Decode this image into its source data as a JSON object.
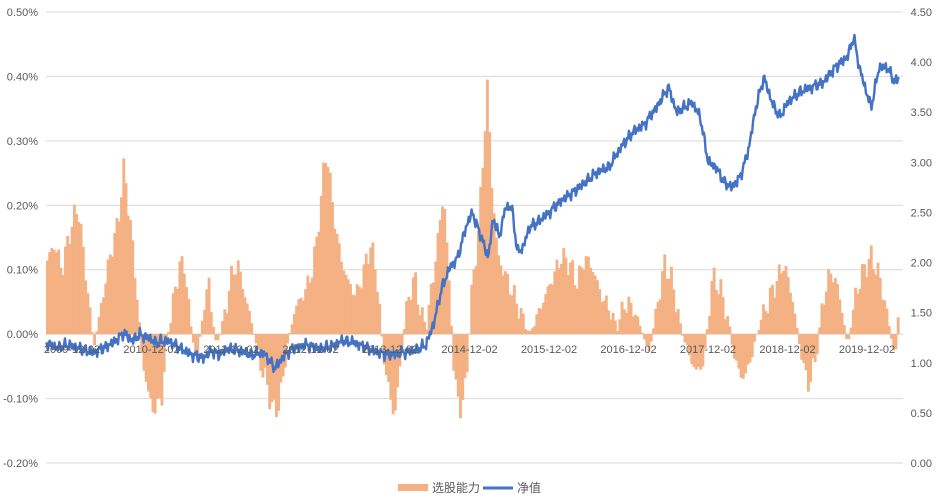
{
  "chart_data": {
    "type": "bar+line",
    "colors": {
      "bars": "#F4B183",
      "line": "#4472C4",
      "grid": "#d9d9d9",
      "text": "#595959"
    },
    "left_axis": {
      "ylim": [
        -0.002,
        0.005
      ],
      "ticks": [
        0.005,
        0.004,
        0.003,
        0.002,
        0.001,
        0.0,
        -0.001,
        -0.002
      ],
      "tick_labels": [
        "0.50%",
        "0.40%",
        "0.30%",
        "0.20%",
        "0.10%",
        "0.00%",
        "-0.10%",
        "-0.20%"
      ]
    },
    "right_axis": {
      "ylim": [
        0.0,
        4.5
      ],
      "ticks": [
        4.5,
        4.0,
        3.5,
        3.0,
        2.5,
        2.0,
        1.5,
        1.0,
        0.5,
        0.0
      ],
      "tick_labels": [
        "4.50",
        "4.00",
        "3.50",
        "3.00",
        "2.50",
        "2.00",
        "1.50",
        "1.00",
        "0.50",
        "0.00"
      ]
    },
    "x_axis": {
      "start": 2009.92,
      "end": 2020.7,
      "tick_values": [
        2009.92,
        2010.92,
        2011.92,
        2012.92,
        2013.92,
        2014.92,
        2015.92,
        2016.92,
        2017.92,
        2018.92,
        2019.92
      ],
      "tick_labels": [
        "2009-12-02",
        "2010-12-02",
        "2011-12-02",
        "2012-12-02",
        "2013-12-02",
        "2014-12-02",
        "2015-12-02",
        "2016-12-02",
        "2017-12-02",
        "2018-12-02",
        "2019-12-02"
      ]
    },
    "grid": true,
    "legend": {
      "placement": "bottom-center",
      "entries": [
        {
          "label": "选股能力",
          "kind": "bar"
        },
        {
          "label": "净值",
          "kind": "line"
        }
      ]
    },
    "series": [
      {
        "name": "选股能力",
        "kind": "bar",
        "axis": "left",
        "points": [
          [
            2009.92,
            0.0011
          ],
          [
            2010.02,
            0.0014
          ],
          [
            2010.12,
            0.001
          ],
          [
            2010.22,
            0.0016
          ],
          [
            2010.32,
            0.002
          ],
          [
            2010.42,
            0.0009
          ],
          [
            2010.52,
            -0.0002
          ],
          [
            2010.62,
            0.0005
          ],
          [
            2010.72,
            0.0012
          ],
          [
            2010.82,
            0.0017
          ],
          [
            2010.9,
            0.0026
          ],
          [
            2010.97,
            0.0018
          ],
          [
            2011.05,
            0.0008
          ],
          [
            2011.12,
            -0.0003
          ],
          [
            2011.2,
            -0.0009
          ],
          [
            2011.27,
            -0.0012
          ],
          [
            2011.37,
            -0.001
          ],
          [
            2011.45,
            0.0
          ],
          [
            2011.52,
            0.0005
          ],
          [
            2011.6,
            0.0011
          ],
          [
            2011.67,
            0.001
          ],
          [
            2011.75,
            0.0
          ],
          [
            2011.82,
            -0.0004
          ],
          [
            2011.9,
            0.0004
          ],
          [
            2011.97,
            0.0008
          ],
          [
            2012.05,
            -0.0002
          ],
          [
            2012.15,
            0.0002
          ],
          [
            2012.25,
            0.0009
          ],
          [
            2012.33,
            0.0011
          ],
          [
            2012.4,
            0.0007
          ],
          [
            2012.5,
            0.0002
          ],
          [
            2012.6,
            -0.0004
          ],
          [
            2012.7,
            -0.0008
          ],
          [
            2012.77,
            -0.0012
          ],
          [
            2012.85,
            -0.0011
          ],
          [
            2012.95,
            -0.0002
          ],
          [
            2013.05,
            0.0004
          ],
          [
            2013.15,
            0.0006
          ],
          [
            2013.25,
            0.0009
          ],
          [
            2013.32,
            0.0014
          ],
          [
            2013.4,
            0.0024
          ],
          [
            2013.45,
            0.0029
          ],
          [
            2013.52,
            0.002
          ],
          [
            2013.62,
            0.0012
          ],
          [
            2013.72,
            0.0008
          ],
          [
            2013.82,
            0.0006
          ],
          [
            2013.92,
            0.001
          ],
          [
            2014.0,
            0.0014
          ],
          [
            2014.08,
            0.0009
          ],
          [
            2014.15,
            -0.0002
          ],
          [
            2014.22,
            -0.0008
          ],
          [
            2014.3,
            -0.0013
          ],
          [
            2014.38,
            -0.0004
          ],
          [
            2014.45,
            0.0004
          ],
          [
            2014.55,
            0.0009
          ],
          [
            2014.62,
            0.0004
          ],
          [
            2014.7,
            0.0001
          ],
          [
            2014.78,
            0.0008
          ],
          [
            2014.85,
            0.0015
          ],
          [
            2014.92,
            0.0022
          ],
          [
            2014.97,
            0.0012
          ],
          [
            2015.05,
            -0.0006
          ],
          [
            2015.12,
            -0.0012
          ],
          [
            2015.2,
            -0.0008
          ],
          [
            2015.27,
            0.0006
          ],
          [
            2015.35,
            0.0015
          ],
          [
            2015.42,
            0.0028
          ],
          [
            2015.47,
            0.0039
          ],
          [
            2015.52,
            0.0024
          ],
          [
            2015.6,
            0.0012
          ],
          [
            2015.7,
            0.0009
          ],
          [
            2015.8,
            0.0006
          ],
          [
            2015.9,
            0.0003
          ],
          [
            2016.0,
            0.0
          ],
          [
            2016.1,
            0.0003
          ],
          [
            2016.2,
            0.0006
          ],
          [
            2016.3,
            0.0009
          ],
          [
            2016.4,
            0.0012
          ],
          [
            2016.5,
            0.0011
          ],
          [
            2016.6,
            0.0008
          ],
          [
            2016.7,
            0.0012
          ],
          [
            2016.8,
            0.001
          ],
          [
            2016.9,
            0.0006
          ],
          [
            2017.0,
            0.0004
          ],
          [
            2017.1,
            0.0001
          ],
          [
            2017.2,
            0.0005
          ],
          [
            2017.3,
            0.0004
          ],
          [
            2017.4,
            0.0001
          ],
          [
            2017.5,
            -0.0003
          ],
          [
            2017.6,
            0.0004
          ],
          [
            2017.7,
            0.0011
          ],
          [
            2017.8,
            0.0008
          ],
          [
            2017.9,
            0.0001
          ],
          [
            2018.0,
            -0.0003
          ],
          [
            2018.1,
            -0.0006
          ],
          [
            2018.2,
            -0.0004
          ],
          [
            2018.3,
            0.0009
          ],
          [
            2018.4,
            0.0007
          ],
          [
            2018.5,
            0.0002
          ],
          [
            2018.6,
            -0.0005
          ],
          [
            2018.7,
            -0.0007
          ],
          [
            2018.8,
            -0.0003
          ],
          [
            2018.9,
            0.0002
          ],
          [
            2019.0,
            0.0005
          ],
          [
            2019.1,
            0.0008
          ],
          [
            2019.2,
            0.0011
          ],
          [
            2019.3,
            0.0006
          ],
          [
            2019.4,
            -0.0002
          ],
          [
            2019.5,
            -0.0008
          ],
          [
            2019.6,
            -0.0004
          ],
          [
            2019.7,
            0.0006
          ],
          [
            2019.8,
            0.001
          ],
          [
            2019.9,
            0.0006
          ],
          [
            2020.0,
            -0.0002
          ],
          [
            2020.1,
            0.0006
          ],
          [
            2020.2,
            0.001
          ],
          [
            2020.3,
            0.0012
          ],
          [
            2020.4,
            0.0009
          ],
          [
            2020.5,
            0.0003
          ],
          [
            2020.6,
            -0.0004
          ],
          [
            2020.65,
            0.0005
          ]
        ]
      },
      {
        "name": "净值",
        "kind": "line",
        "axis": "right",
        "points": [
          [
            2009.92,
            1.2
          ],
          [
            2010.05,
            1.15
          ],
          [
            2010.2,
            1.18
          ],
          [
            2010.35,
            1.14
          ],
          [
            2010.5,
            1.1
          ],
          [
            2010.65,
            1.15
          ],
          [
            2010.8,
            1.22
          ],
          [
            2010.9,
            1.3
          ],
          [
            2011.0,
            1.22
          ],
          [
            2011.1,
            1.28
          ],
          [
            2011.2,
            1.25
          ],
          [
            2011.3,
            1.2
          ],
          [
            2011.45,
            1.22
          ],
          [
            2011.6,
            1.15
          ],
          [
            2011.75,
            1.08
          ],
          [
            2011.9,
            1.05
          ],
          [
            2012.0,
            1.12
          ],
          [
            2012.1,
            1.08
          ],
          [
            2012.2,
            1.14
          ],
          [
            2012.35,
            1.12
          ],
          [
            2012.5,
            1.08
          ],
          [
            2012.65,
            1.1
          ],
          [
            2012.8,
            0.95
          ],
          [
            2012.95,
            1.1
          ],
          [
            2013.05,
            1.15
          ],
          [
            2013.2,
            1.18
          ],
          [
            2013.35,
            1.14
          ],
          [
            2013.5,
            1.16
          ],
          [
            2013.65,
            1.22
          ],
          [
            2013.8,
            1.2
          ],
          [
            2013.95,
            1.15
          ],
          [
            2014.1,
            1.1
          ],
          [
            2014.25,
            1.08
          ],
          [
            2014.4,
            1.1
          ],
          [
            2014.55,
            1.12
          ],
          [
            2014.7,
            1.18
          ],
          [
            2014.8,
            1.4
          ],
          [
            2014.9,
            1.75
          ],
          [
            2015.0,
            1.95
          ],
          [
            2015.1,
            2.05
          ],
          [
            2015.2,
            2.35
          ],
          [
            2015.28,
            2.5
          ],
          [
            2015.35,
            2.35
          ],
          [
            2015.42,
            2.2
          ],
          [
            2015.48,
            2.05
          ],
          [
            2015.55,
            2.45
          ],
          [
            2015.62,
            2.25
          ],
          [
            2015.7,
            2.55
          ],
          [
            2015.78,
            2.55
          ],
          [
            2015.85,
            2.1
          ],
          [
            2015.92,
            2.15
          ],
          [
            2016.0,
            2.35
          ],
          [
            2016.1,
            2.4
          ],
          [
            2016.25,
            2.5
          ],
          [
            2016.4,
            2.62
          ],
          [
            2016.55,
            2.7
          ],
          [
            2016.7,
            2.8
          ],
          [
            2016.85,
            2.9
          ],
          [
            2017.0,
            2.95
          ],
          [
            2017.15,
            3.15
          ],
          [
            2017.3,
            3.3
          ],
          [
            2017.45,
            3.38
          ],
          [
            2017.6,
            3.55
          ],
          [
            2017.75,
            3.75
          ],
          [
            2017.85,
            3.5
          ],
          [
            2017.95,
            3.55
          ],
          [
            2018.05,
            3.6
          ],
          [
            2018.15,
            3.45
          ],
          [
            2018.25,
            3.0
          ],
          [
            2018.35,
            2.95
          ],
          [
            2018.45,
            2.8
          ],
          [
            2018.55,
            2.75
          ],
          [
            2018.65,
            2.85
          ],
          [
            2018.75,
            3.1
          ],
          [
            2018.85,
            3.55
          ],
          [
            2018.95,
            3.85
          ],
          [
            2019.05,
            3.6
          ],
          [
            2019.15,
            3.45
          ],
          [
            2019.25,
            3.6
          ],
          [
            2019.4,
            3.7
          ],
          [
            2019.55,
            3.75
          ],
          [
            2019.7,
            3.8
          ],
          [
            2019.85,
            3.95
          ],
          [
            2020.0,
            4.05
          ],
          [
            2020.08,
            4.25
          ],
          [
            2020.15,
            3.95
          ],
          [
            2020.22,
            3.75
          ],
          [
            2020.3,
            3.55
          ],
          [
            2020.4,
            3.95
          ],
          [
            2020.5,
            3.95
          ],
          [
            2020.6,
            3.8
          ],
          [
            2020.65,
            3.85
          ]
        ]
      }
    ]
  }
}
